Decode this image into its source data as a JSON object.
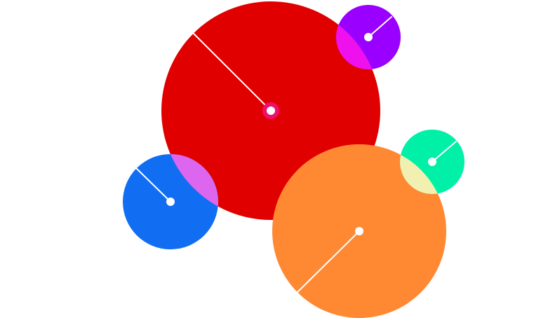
{
  "colors": {
    "background": "#ffffff",
    "red": "#e00000",
    "purple": "#9900ff",
    "blue": "#116ef2",
    "orange": "#ff8833",
    "green": "#00f0a8",
    "red_purple_overlap": "#ee11ee",
    "red_blue_overlap": "#dd66ee",
    "orange_green_overlap": "#f2f0b0",
    "red_center_dot": "#ee0f6a",
    "radius_line": "#ffffff"
  },
  "circles": [
    {
      "name": "red-circle",
      "color_key": "red",
      "handle_angle_deg": 225
    },
    {
      "name": "purple-circle",
      "color_key": "purple",
      "handle_angle_deg": 315
    },
    {
      "name": "blue-circle",
      "color_key": "blue",
      "handle_angle_deg": 225
    },
    {
      "name": "orange-circle",
      "color_key": "orange",
      "handle_angle_deg": 135
    },
    {
      "name": "green-circle",
      "color_key": "green",
      "handle_angle_deg": 315
    }
  ]
}
